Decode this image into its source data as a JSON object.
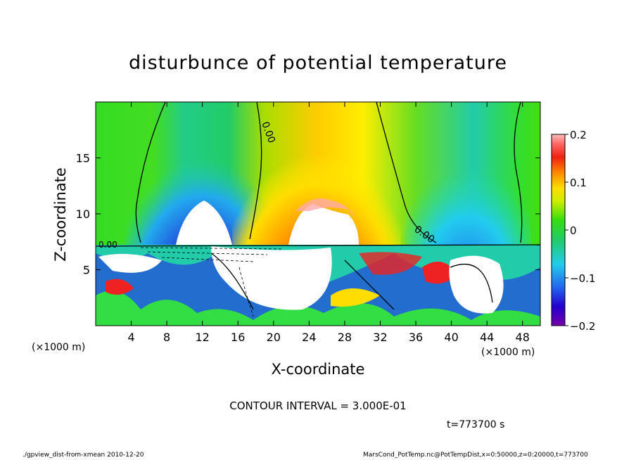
{
  "chart_data": {
    "type": "heatmap",
    "title": "disturbunce of potential temperature",
    "xlabel": "X-coordinate",
    "ylabel": "Z-coordinate",
    "x_unit": "(×1000 m)",
    "y_unit": "(×1000 m)",
    "xlim": [
      0,
      50
    ],
    "ylim": [
      0,
      20
    ],
    "x_ticks": [
      4,
      8,
      12,
      16,
      20,
      24,
      28,
      32,
      36,
      40,
      44,
      48
    ],
    "y_ticks": [
      5,
      10,
      15
    ],
    "colorbar": {
      "range": [
        -0.2,
        0.2
      ],
      "ticks": [
        "0.2",
        "0.1",
        "0",
        "−0.1",
        "−0.2"
      ],
      "tick_values": [
        0.2,
        0.1,
        0,
        -0.1,
        -0.2
      ]
    },
    "contour_label": "0.00",
    "contour_interval_text": "CONTOUR INTERVAL = 3.000E-01",
    "features": [
      {
        "x": 12,
        "z": 11,
        "value": -0.2
      },
      {
        "x": 25,
        "z": 11,
        "value": 0.2
      },
      {
        "x": 42,
        "z": 9,
        "value": -0.1
      }
    ]
  },
  "time_label": "t=773700 s",
  "footer_left": "./gpview_dist-from-xmean  2010-12-20",
  "footer_right": "MarsCond_PotTemp.nc@PotTempDist,x=0:50000,z=0:20000,t=773700"
}
